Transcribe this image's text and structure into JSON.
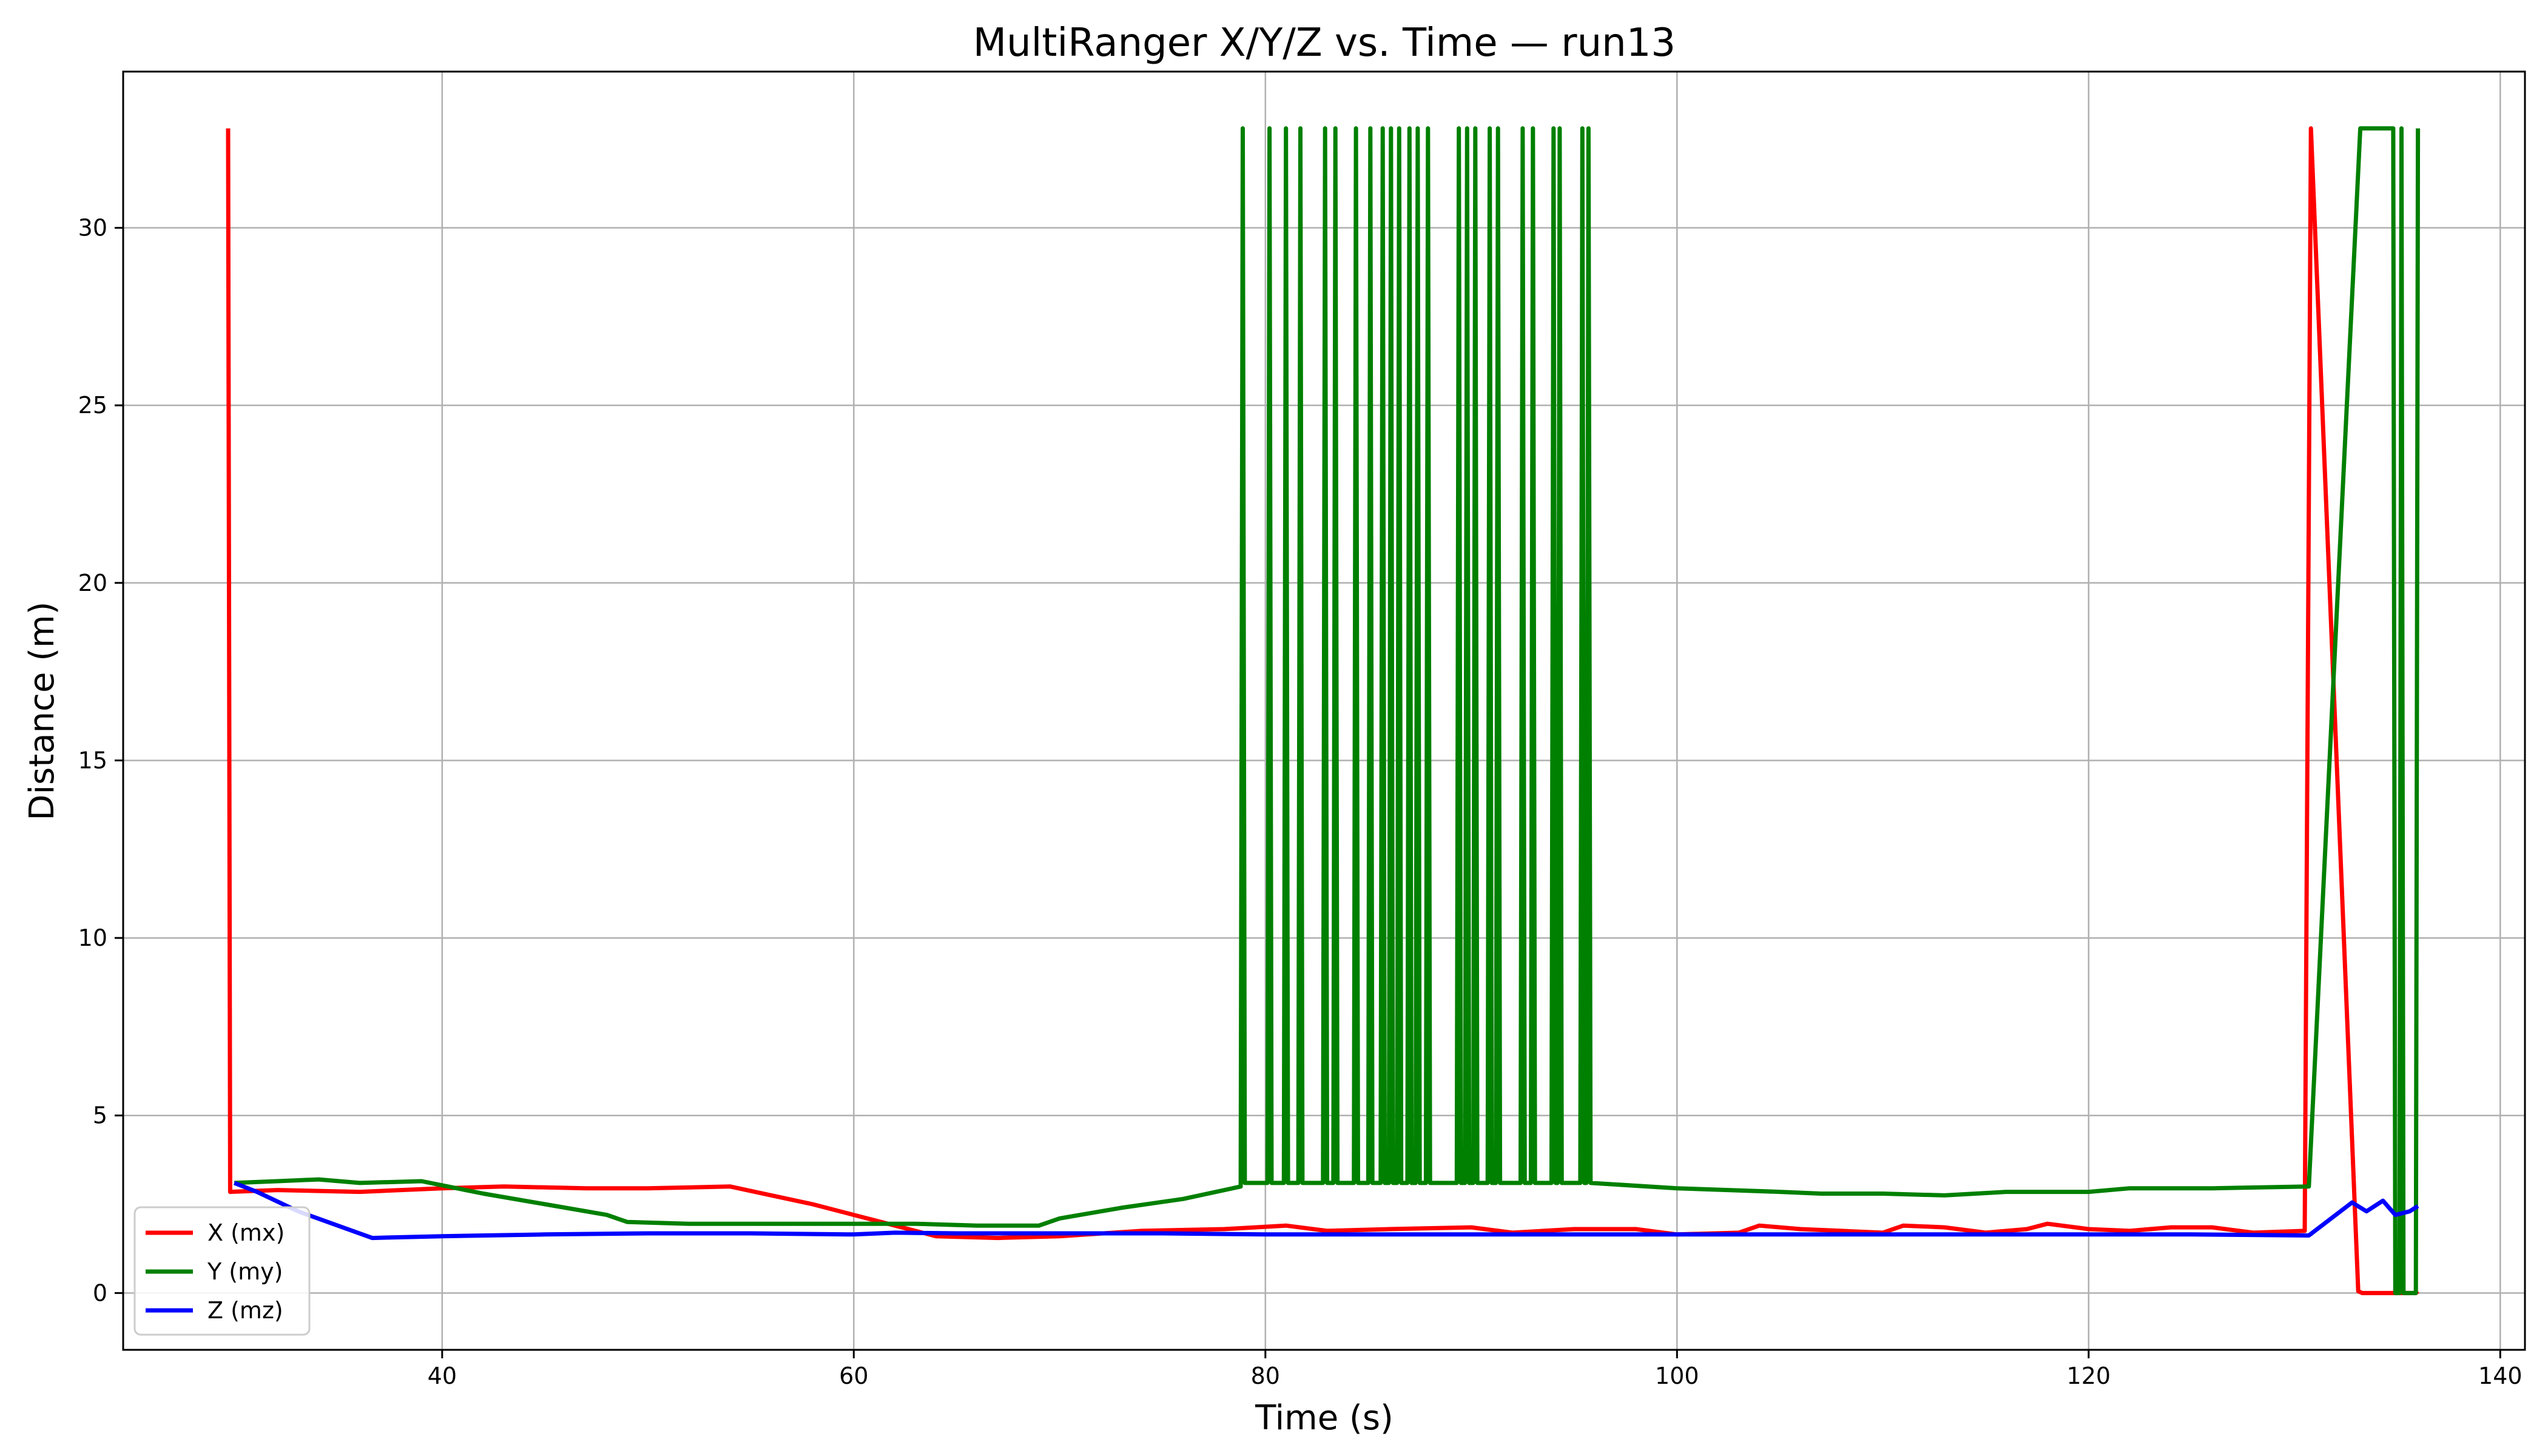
{
  "chart_data": {
    "type": "line",
    "title": "MultiRanger X/Y/Z vs. Time — run13",
    "xlabel": "Time (s)",
    "ylabel": "Distance (m)",
    "xlim": [
      24.5,
      141.2
    ],
    "ylim": [
      -1.6,
      34.4
    ],
    "xticks": [
      40,
      60,
      80,
      100,
      120,
      140
    ],
    "yticks": [
      0,
      5,
      10,
      15,
      20,
      25,
      30
    ],
    "grid": true,
    "legend": "lower-left",
    "series": [
      {
        "name": "X (mx)",
        "color": "#ff0000",
        "points": [
          [
            29.6,
            32.8
          ],
          [
            29.7,
            2.85
          ],
          [
            32,
            2.9
          ],
          [
            36,
            2.85
          ],
          [
            40,
            2.95
          ],
          [
            43,
            3.0
          ],
          [
            47,
            2.95
          ],
          [
            50,
            2.95
          ],
          [
            54,
            3.0
          ],
          [
            56,
            2.75
          ],
          [
            58,
            2.5
          ],
          [
            60,
            2.2
          ],
          [
            62,
            1.9
          ],
          [
            64,
            1.6
          ],
          [
            67,
            1.55
          ],
          [
            70,
            1.6
          ],
          [
            74,
            1.75
          ],
          [
            78,
            1.8
          ],
          [
            81,
            1.9
          ],
          [
            83,
            1.75
          ],
          [
            86,
            1.8
          ],
          [
            90,
            1.85
          ],
          [
            92,
            1.7
          ],
          [
            95,
            1.8
          ],
          [
            98,
            1.8
          ],
          [
            100,
            1.65
          ],
          [
            103,
            1.7
          ],
          [
            104,
            1.9
          ],
          [
            106,
            1.8
          ],
          [
            108,
            1.75
          ],
          [
            110,
            1.7
          ],
          [
            111,
            1.9
          ],
          [
            113,
            1.85
          ],
          [
            115,
            1.7
          ],
          [
            117,
            1.8
          ],
          [
            118,
            1.95
          ],
          [
            120,
            1.8
          ],
          [
            122,
            1.75
          ],
          [
            124,
            1.85
          ],
          [
            126,
            1.85
          ],
          [
            128,
            1.7
          ],
          [
            130.5,
            1.75
          ],
          [
            130.8,
            32.8
          ],
          [
            133.1,
            0.05
          ],
          [
            133.3,
            0
          ],
          [
            135.9,
            0
          ],
          [
            136.0,
            0.05
          ]
        ]
      },
      {
        "name": "Y (my)",
        "color": "#008000",
        "points": [
          [
            29.9,
            3.1
          ],
          [
            32,
            3.15
          ],
          [
            34,
            3.2
          ],
          [
            36,
            3.1
          ],
          [
            39,
            3.15
          ],
          [
            42,
            2.8
          ],
          [
            45,
            2.5
          ],
          [
            48,
            2.2
          ],
          [
            49,
            2.0
          ],
          [
            52,
            1.95
          ],
          [
            55,
            1.95
          ],
          [
            60,
            1.95
          ],
          [
            63,
            1.95
          ],
          [
            66,
            1.9
          ],
          [
            69,
            1.9
          ],
          [
            70,
            2.1
          ],
          [
            73,
            2.4
          ],
          [
            76,
            2.65
          ],
          [
            78.8,
            3.0
          ],
          [
            78.9,
            32.8
          ],
          [
            79.0,
            3.1
          ],
          [
            80.1,
            3.1
          ],
          [
            80.2,
            32.8
          ],
          [
            80.3,
            3.1
          ],
          [
            80.9,
            3.1
          ],
          [
            81.0,
            32.8
          ],
          [
            81.1,
            3.1
          ],
          [
            81.6,
            3.1
          ],
          [
            81.7,
            32.8
          ],
          [
            81.8,
            3.1
          ],
          [
            82.8,
            3.1
          ],
          [
            82.9,
            32.8
          ],
          [
            83.0,
            3.1
          ],
          [
            83.3,
            3.1
          ],
          [
            83.4,
            32.8
          ],
          [
            83.5,
            3.1
          ],
          [
            84.3,
            3.1
          ],
          [
            84.4,
            32.8
          ],
          [
            84.5,
            3.1
          ],
          [
            85.0,
            3.1
          ],
          [
            85.1,
            32.8
          ],
          [
            85.2,
            3.1
          ],
          [
            85.6,
            3.1
          ],
          [
            85.7,
            32.8
          ],
          [
            85.8,
            3.1
          ],
          [
            86.0,
            3.1
          ],
          [
            86.1,
            32.8
          ],
          [
            86.2,
            3.1
          ],
          [
            86.4,
            3.1
          ],
          [
            86.5,
            32.8
          ],
          [
            86.6,
            3.1
          ],
          [
            86.9,
            3.1
          ],
          [
            87.0,
            32.8
          ],
          [
            87.1,
            3.1
          ],
          [
            87.3,
            3.1
          ],
          [
            87.4,
            32.8
          ],
          [
            87.5,
            3.1
          ],
          [
            87.8,
            3.1
          ],
          [
            87.9,
            32.8
          ],
          [
            88.0,
            3.1
          ],
          [
            89.3,
            3.1
          ],
          [
            89.4,
            32.8
          ],
          [
            89.5,
            3.1
          ],
          [
            89.7,
            3.1
          ],
          [
            89.8,
            32.8
          ],
          [
            89.9,
            3.1
          ],
          [
            90.1,
            3.1
          ],
          [
            90.2,
            32.8
          ],
          [
            90.3,
            3.1
          ],
          [
            90.8,
            3.1
          ],
          [
            90.9,
            32.8
          ],
          [
            91.0,
            3.1
          ],
          [
            91.2,
            3.1
          ],
          [
            91.3,
            32.8
          ],
          [
            91.4,
            3.1
          ],
          [
            92.4,
            3.1
          ],
          [
            92.5,
            32.8
          ],
          [
            92.6,
            3.1
          ],
          [
            92.9,
            3.1
          ],
          [
            93.0,
            32.8
          ],
          [
            93.1,
            3.1
          ],
          [
            93.9,
            3.1
          ],
          [
            94.0,
            32.8
          ],
          [
            94.1,
            3.1
          ],
          [
            94.2,
            3.1
          ],
          [
            94.3,
            32.8
          ],
          [
            94.4,
            3.1
          ],
          [
            95.3,
            3.1
          ],
          [
            95.4,
            32.8
          ],
          [
            95.5,
            3.1
          ],
          [
            95.6,
            3.1
          ],
          [
            95.7,
            32.8
          ],
          [
            95.8,
            3.1
          ],
          [
            100,
            2.95
          ],
          [
            105,
            2.85
          ],
          [
            107,
            2.8
          ],
          [
            110,
            2.8
          ],
          [
            113,
            2.75
          ],
          [
            116,
            2.85
          ],
          [
            120,
            2.85
          ],
          [
            122,
            2.95
          ],
          [
            126,
            2.95
          ],
          [
            130.7,
            3.0
          ],
          [
            133.2,
            32.8
          ],
          [
            134.8,
            32.8
          ],
          [
            134.9,
            0
          ],
          [
            135.1,
            0
          ],
          [
            135.2,
            32.8
          ],
          [
            135.3,
            0
          ],
          [
            135.9,
            0
          ],
          [
            136.0,
            32.8
          ]
        ]
      },
      {
        "name": "Z (mz)",
        "color": "#0000ff",
        "points": [
          [
            29.9,
            3.1
          ],
          [
            31,
            2.85
          ],
          [
            33,
            2.3
          ],
          [
            36.6,
            1.55
          ],
          [
            40,
            1.6
          ],
          [
            45,
            1.65
          ],
          [
            50,
            1.68
          ],
          [
            55,
            1.68
          ],
          [
            60,
            1.65
          ],
          [
            62,
            1.7
          ],
          [
            65,
            1.68
          ],
          [
            70,
            1.68
          ],
          [
            75,
            1.68
          ],
          [
            80,
            1.65
          ],
          [
            85,
            1.65
          ],
          [
            90,
            1.65
          ],
          [
            95,
            1.65
          ],
          [
            100,
            1.65
          ],
          [
            105,
            1.65
          ],
          [
            110,
            1.65
          ],
          [
            115,
            1.65
          ],
          [
            120,
            1.65
          ],
          [
            125,
            1.65
          ],
          [
            130.7,
            1.62
          ],
          [
            132.8,
            2.55
          ],
          [
            133.5,
            2.3
          ],
          [
            134.3,
            2.6
          ],
          [
            134.9,
            2.2
          ],
          [
            135.6,
            2.3
          ],
          [
            136.0,
            2.45
          ]
        ]
      }
    ]
  }
}
